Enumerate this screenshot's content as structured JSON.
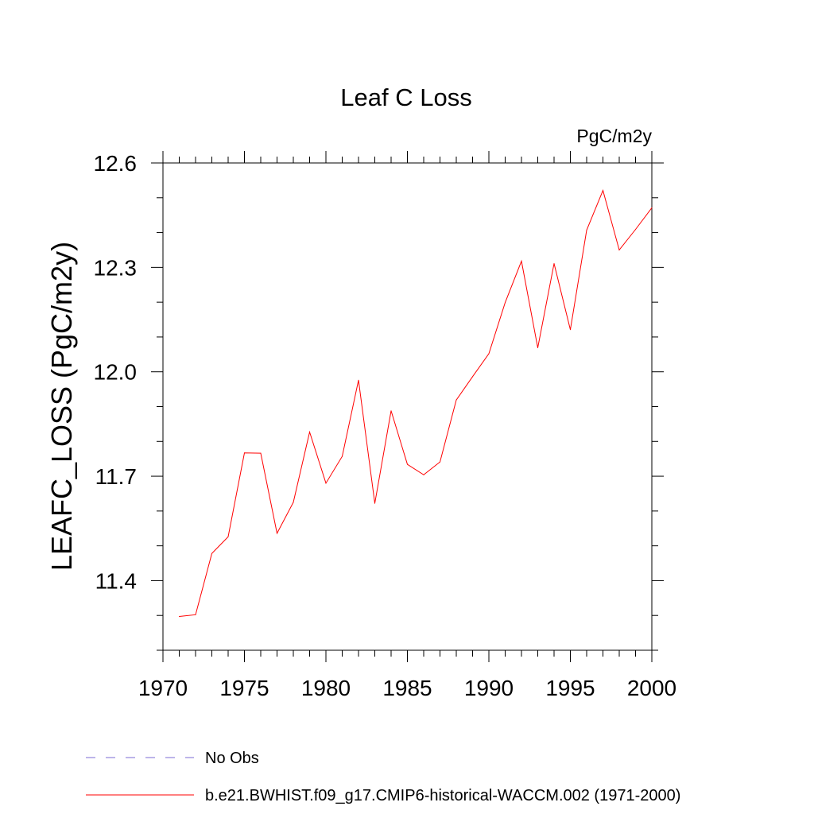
{
  "chart_data": {
    "type": "line",
    "title": "Leaf C Loss",
    "units_label": "PgC/m2y",
    "ylabel": "LEAFC_LOSS  (PgC/m2y)",
    "xlabel": "",
    "xlim": [
      1970,
      2000
    ],
    "ylim": [
      11.2,
      12.6
    ],
    "x_ticks": [
      1970,
      1975,
      1980,
      1985,
      1990,
      1995,
      2000
    ],
    "x_tick_labels": [
      "1970",
      "1975",
      "1980",
      "1985",
      "1990",
      "1995",
      "2000"
    ],
    "y_ticks": [
      11.4,
      11.7,
      12.0,
      12.3,
      12.6
    ],
    "y_tick_labels": [
      "11.4",
      "11.7",
      "12.0",
      "12.3",
      "12.6"
    ],
    "grid": false,
    "legend_position": "bottom-left",
    "series": [
      {
        "name": "b.e21.BWHIST.f09_g17.CMIP6-historical-WACCM.002 (1971-2000)",
        "color": "#ff0000",
        "line_style": "solid",
        "x": [
          1971,
          1972,
          1973,
          1974,
          1975,
          1976,
          1977,
          1978,
          1979,
          1980,
          1981,
          1982,
          1983,
          1984,
          1985,
          1986,
          1987,
          1988,
          1989,
          1990,
          1991,
          1992,
          1993,
          1994,
          1995,
          1996,
          1997,
          1998,
          1999,
          2000
        ],
        "values": [
          11.297,
          11.302,
          11.478,
          11.526,
          11.767,
          11.766,
          11.536,
          11.625,
          11.827,
          11.68,
          11.757,
          11.976,
          11.622,
          11.888,
          11.734,
          11.704,
          11.741,
          11.919,
          11.986,
          12.052,
          12.199,
          12.318,
          12.069,
          12.311,
          12.121,
          12.407,
          12.521,
          12.35,
          12.409,
          12.471
        ]
      }
    ],
    "legend": [
      {
        "label": "No Obs",
        "color": "#7b6bd6",
        "line_style": "dashed"
      },
      {
        "label": "b.e21.BWHIST.f09_g17.CMIP6-historical-WACCM.002 (1971-2000)",
        "color": "#ff0000",
        "line_style": "solid"
      }
    ]
  }
}
